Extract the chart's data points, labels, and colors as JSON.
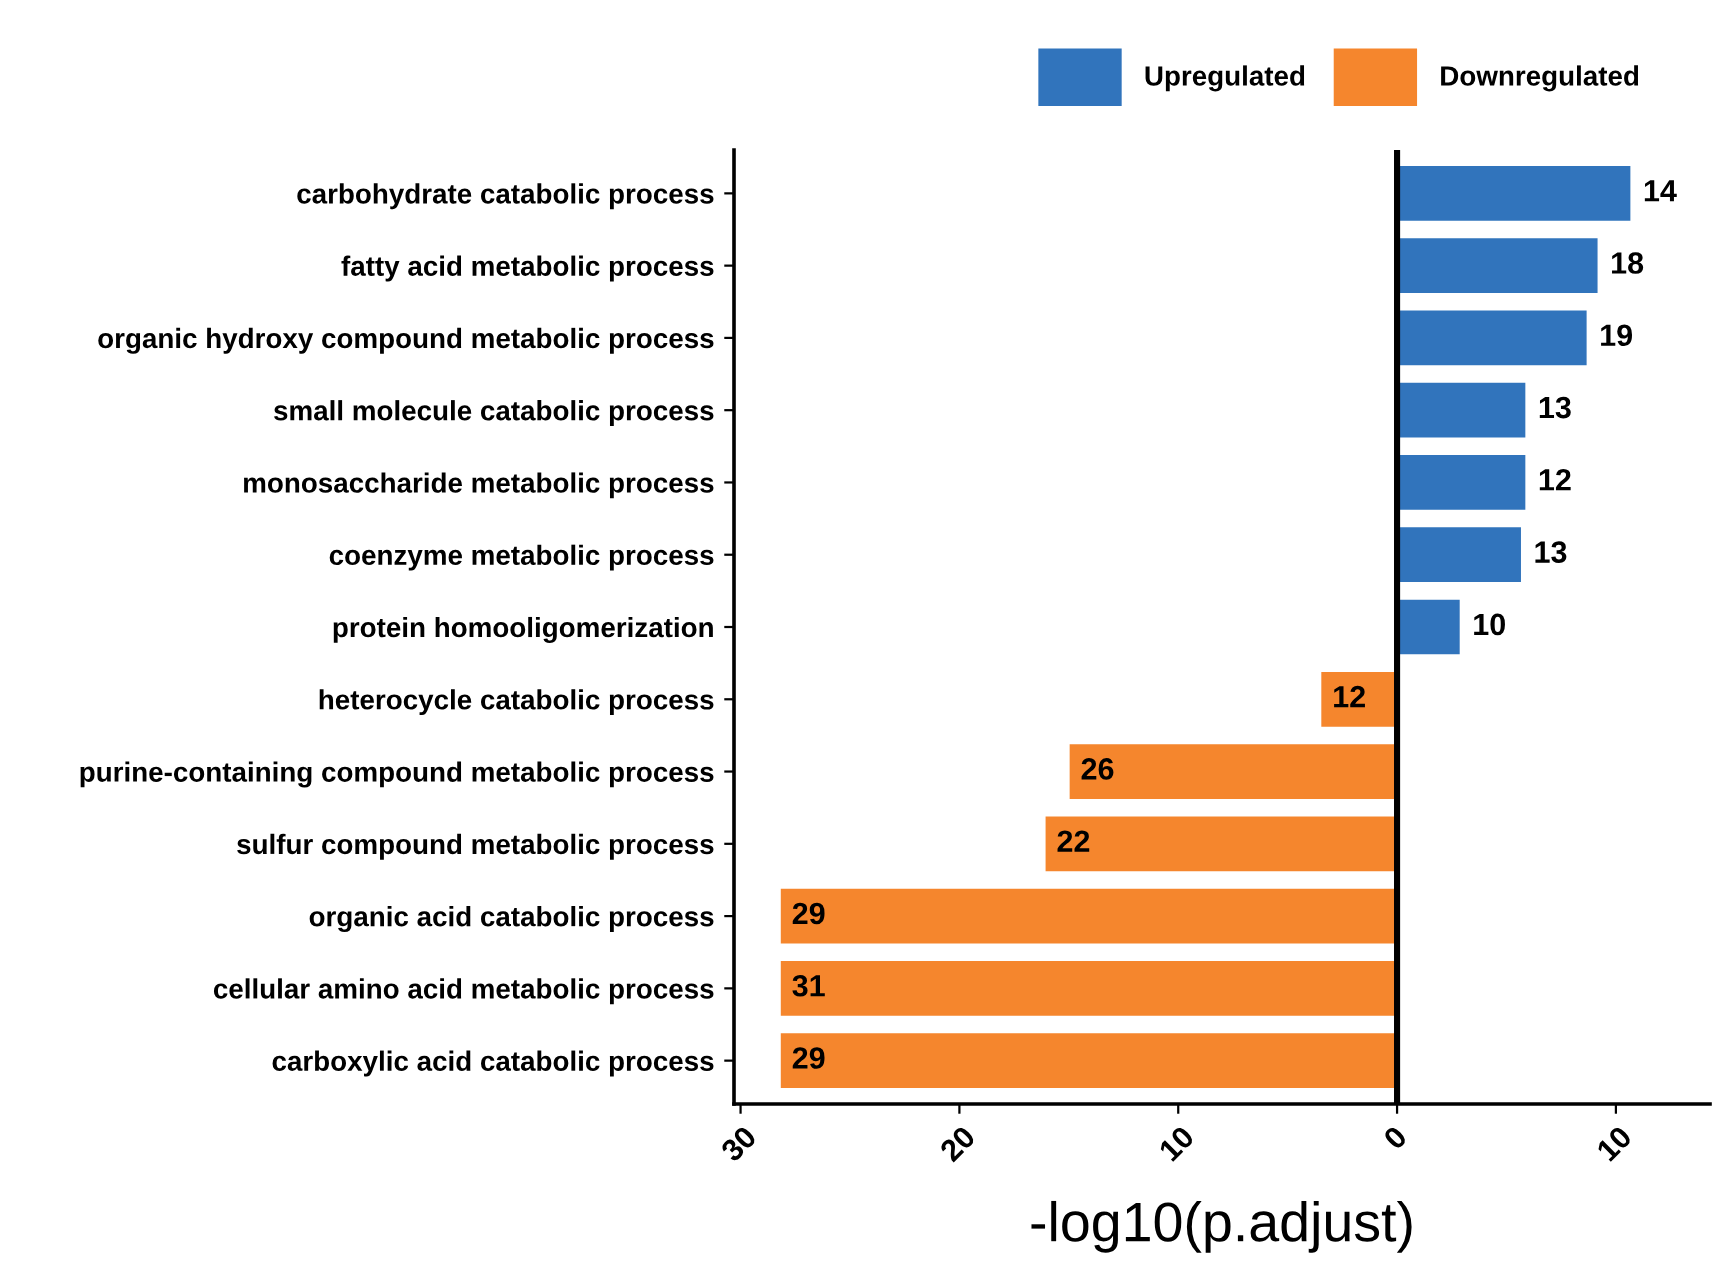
{
  "chart_data": {
    "type": "bar",
    "orientation": "horizontal",
    "xlabel": "-log10(p.adjust)",
    "categories": [
      "carbohydrate catabolic process",
      "fatty acid metabolic process",
      "organic hydroxy compound metabolic process",
      "small molecule catabolic process",
      "monosaccharide metabolic process",
      "coenzyme metabolic process",
      "protein homooligomerization",
      "heterocycle catabolic process",
      "purine-containing compound metabolic process",
      "sulfur compound metabolic process",
      "organic acid catabolic process",
      "cellular amino acid metabolic process",
      "carboxylic acid catabolic process"
    ],
    "series": [
      {
        "name": "Upregulated",
        "color": "#3174bc",
        "values": [
          10.7,
          9.2,
          8.7,
          5.9,
          5.9,
          5.7,
          2.9,
          null,
          null,
          null,
          null,
          null,
          null
        ]
      },
      {
        "name": "Downregulated",
        "color": "#f5862d",
        "values": [
          null,
          null,
          null,
          null,
          null,
          null,
          null,
          -3.5,
          -15.0,
          -16.1,
          -28.2,
          -28.2,
          -28.2
        ]
      }
    ],
    "annotations": [
      {
        "text": "14",
        "x": 10.7,
        "y": "carbohydrate catabolic process"
      },
      {
        "text": "18",
        "x": 9.2,
        "y": "fatty acid metabolic process"
      },
      {
        "text": "19",
        "x": 8.7,
        "y": "organic hydroxy compound metabolic process"
      },
      {
        "text": "13",
        "x": 5.9,
        "y": "small molecule catabolic process"
      },
      {
        "text": "12",
        "x": 5.9,
        "y": "monosaccharide metabolic process"
      },
      {
        "text": "13",
        "x": 5.7,
        "y": "coenzyme metabolic process"
      },
      {
        "text": "10",
        "x": 2.9,
        "y": "protein homooligomerization"
      },
      {
        "text": "12",
        "x": -3.5,
        "y": "heterocycle catabolic process"
      },
      {
        "text": "26",
        "x": -15.0,
        "y": "purine-containing compound metabolic process"
      },
      {
        "text": "22",
        "x": -16.1,
        "y": "sulfur compound metabolic process"
      },
      {
        "text": "29",
        "x": -28.2,
        "y": "organic acid catabolic process"
      },
      {
        "text": "31",
        "x": -28.2,
        "y": "cellular amino acid metabolic process"
      },
      {
        "text": "29",
        "x": -28.2,
        "y": "carboxylic acid catabolic process"
      }
    ],
    "xlim": [
      -30.3,
      14.3
    ],
    "xticks": [
      {
        "value": -30,
        "label": "30"
      },
      {
        "value": -20,
        "label": "20"
      },
      {
        "value": -10,
        "label": "10"
      },
      0,
      10
    ],
    "ref_lines": [
      {
        "axis": "x",
        "value": 0,
        "label": null,
        "color": "#000000"
      }
    ],
    "grid": false,
    "legend": "top"
  }
}
